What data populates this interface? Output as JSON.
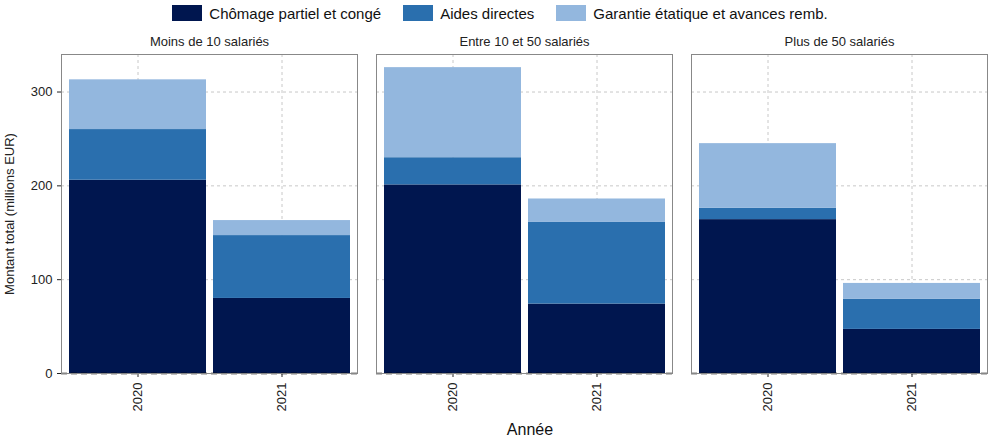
{
  "chart_data": {
    "type": "bar",
    "stacked": true,
    "grid": true,
    "legend": "top",
    "x_label": "Année",
    "y_label": "Montant total (millions EUR)",
    "facets": [
      "Moins de 10 salariés",
      "Entre 10 et 50 salariés",
      "Plus de 50 salariés"
    ],
    "categories": [
      "2020",
      "2021"
    ],
    "ylim": [
      0,
      340
    ],
    "yticks": [
      0,
      100,
      200,
      300
    ],
    "series": [
      {
        "name": "Chômage partiel et congé",
        "color": "#00164f",
        "values": [
          [
            206,
            80
          ],
          [
            201,
            74
          ],
          [
            164,
            47
          ]
        ]
      },
      {
        "name": "Aides directes",
        "color": "#2a6fae",
        "values": [
          [
            54,
            67
          ],
          [
            29,
            87
          ],
          [
            12,
            32
          ]
        ]
      },
      {
        "name": "Garantie étatique et avances remb.",
        "color": "#93b7de",
        "values": [
          [
            53,
            16
          ],
          [
            96,
            25
          ],
          [
            69,
            17
          ]
        ]
      }
    ]
  }
}
